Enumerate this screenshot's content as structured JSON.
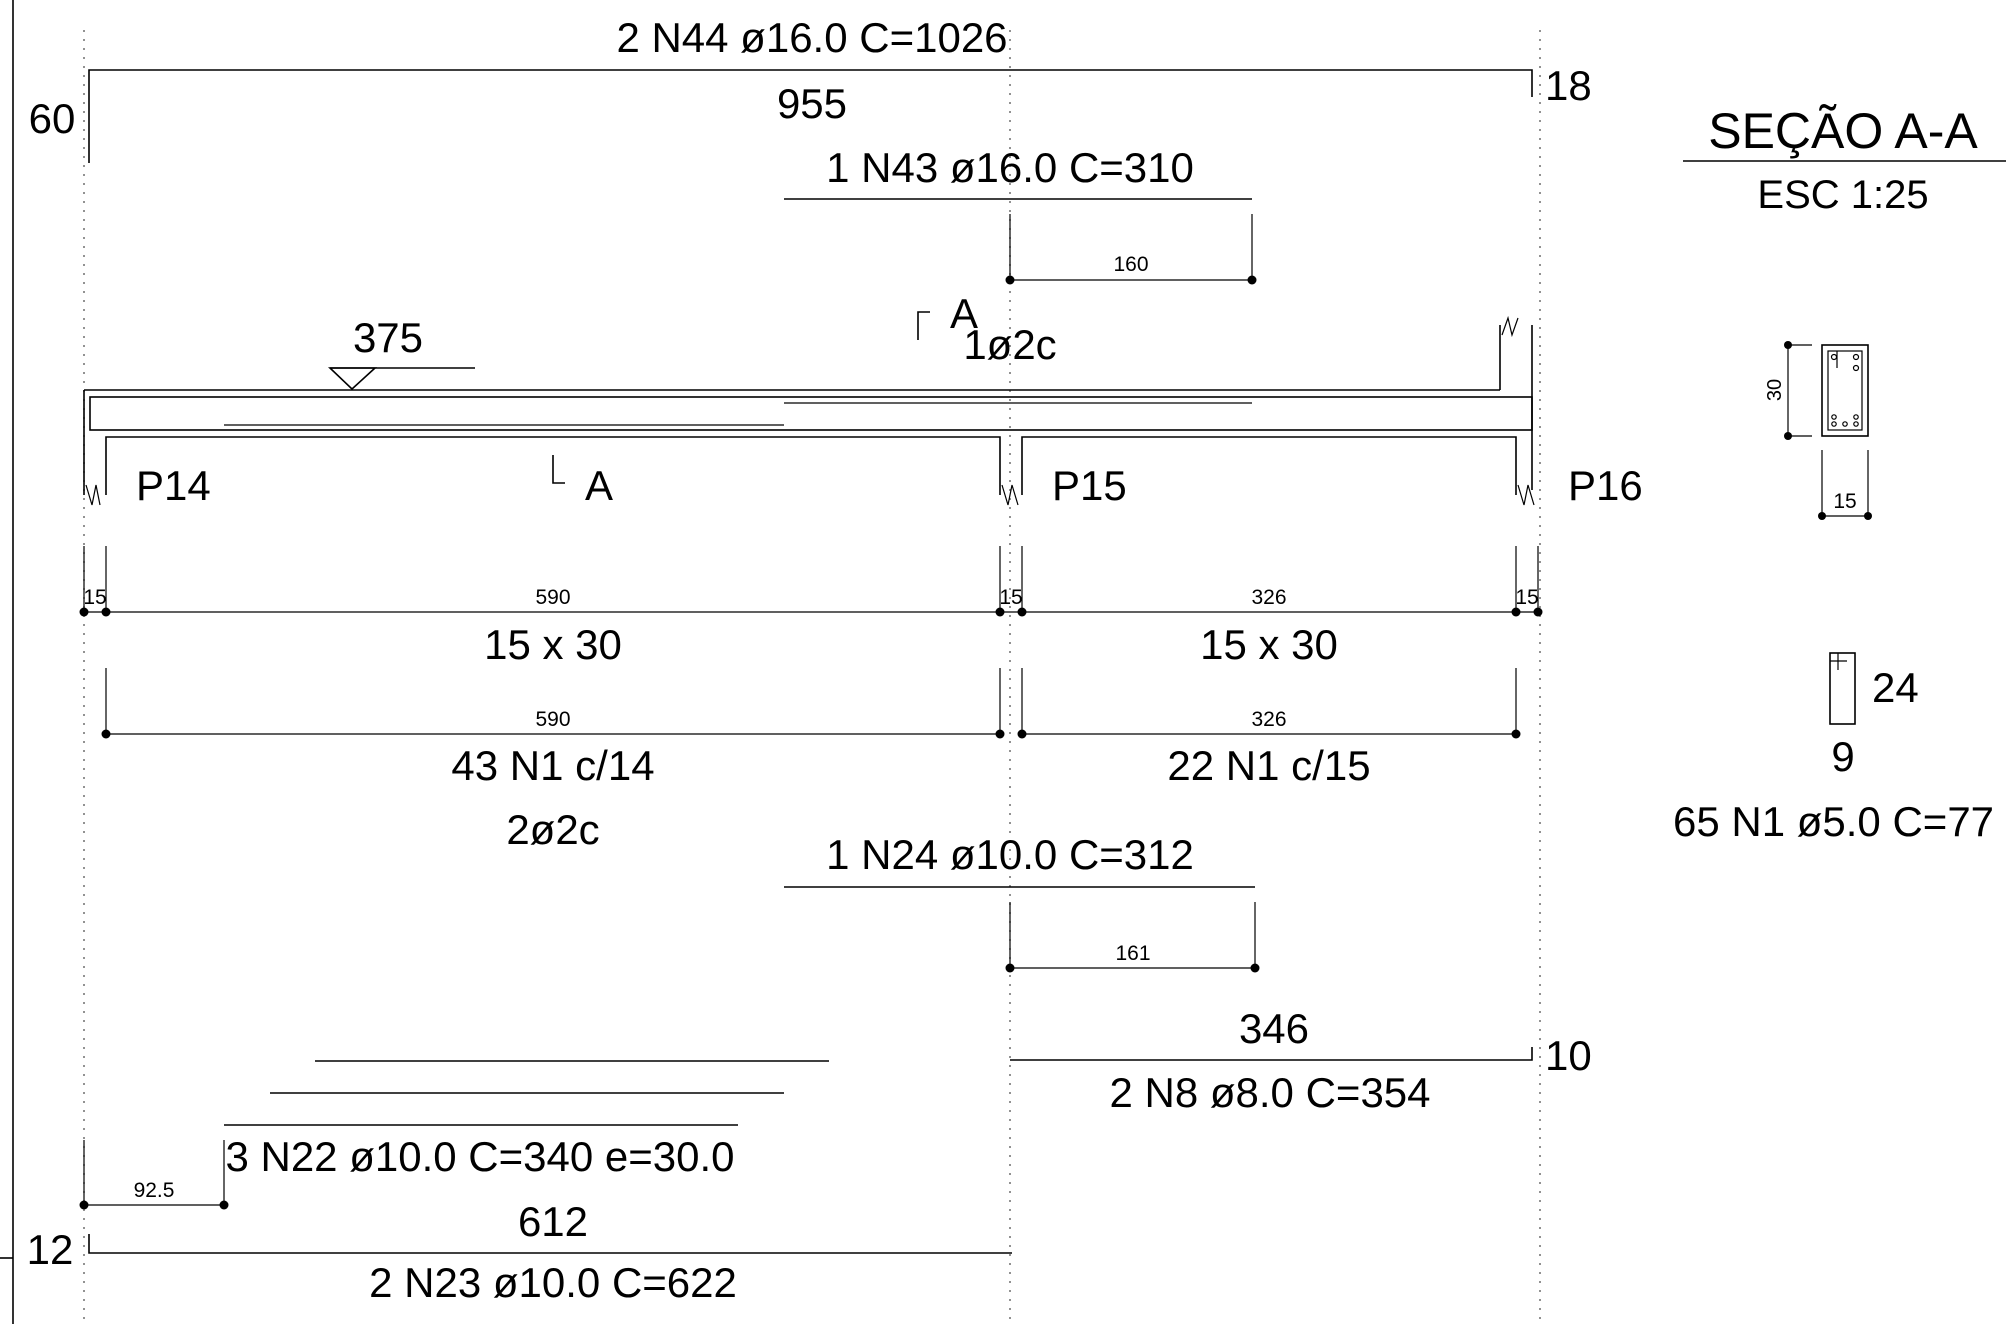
{
  "top_bars": {
    "n44": {
      "label": "2 N44 ø16.0 C=1026",
      "length": "955",
      "hook_left": "60",
      "hook_right": "18"
    },
    "n43": {
      "label": "1 N43 ø16.0 C=310",
      "dim": "160"
    },
    "label_1c": "1ø2c",
    "level": "375"
  },
  "section_mark": {
    "top": "A",
    "bottom": "A"
  },
  "pillars": [
    "P14",
    "P15",
    "P16"
  ],
  "dims": {
    "support_widths": [
      "15",
      "15",
      "15"
    ],
    "span1": "590",
    "span2": "326",
    "section_span1": "15 x 30",
    "section_span2": "15 x 30",
    "stirrup_dim1": "590",
    "stirrup_dim2": "326",
    "stirrups_span1": "43 N1 c/14",
    "stirrups_span2": "22 N1 c/15",
    "label_2c": "2ø2c"
  },
  "bottom_bars": {
    "n24": {
      "label": "1 N24 ø10.0 C=312",
      "dim": "161"
    },
    "n8": {
      "length": "346",
      "label": "2 N8 ø8.0 C=354",
      "hook": "10"
    },
    "n22": {
      "label": "3 N22 ø10.0 C=340 e=30.0",
      "dim": "92.5"
    },
    "n23": {
      "length": "612",
      "label": "2 N23 ø10.0 C=622",
      "hook": "12"
    }
  },
  "section_view": {
    "title": "SEÇÃO A-A",
    "scale": "ESC 1:25",
    "height": "30",
    "width": "15"
  },
  "stirrup_detail": {
    "height": "24",
    "width": "9",
    "label": "65 N1 ø5.0 C=77"
  }
}
